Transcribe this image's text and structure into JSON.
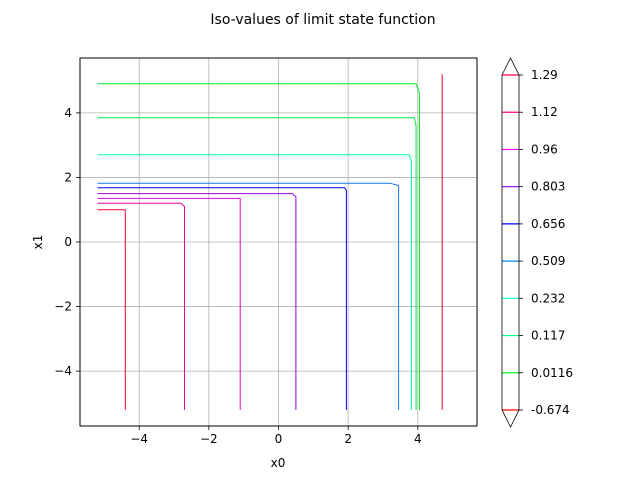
{
  "chart_data": {
    "type": "line",
    "title": "Iso-values of limit state function",
    "xlabel": "x0",
    "ylabel": "x1",
    "xlim": [
      -5.7,
      5.7
    ],
    "ylim": [
      -5.7,
      5.7
    ],
    "xticks": [
      -4,
      -2,
      0,
      2,
      4
    ],
    "xtick_labels": [
      "−4",
      "−2",
      "0",
      "2",
      "4"
    ],
    "yticks": [
      -4,
      -2,
      0,
      2,
      4
    ],
    "ytick_labels": [
      "−4",
      "−2",
      "0",
      "2",
      "4"
    ],
    "grid": true,
    "colorbar": {
      "labels": [
        "-0.674",
        "0.0116",
        "0.117",
        "0.232",
        "0.509",
        "0.656",
        "0.803",
        "0.96",
        "1.12",
        "1.29"
      ],
      "colors": [
        "#ff0000",
        "#00ff22",
        "#00ff88",
        "#00ffcc",
        "#0088ff",
        "#0000ff",
        "#8800ff",
        "#ff00ff",
        "#ff0088",
        "#ff0044"
      ],
      "extend": "both"
    },
    "series": [
      {
        "color": "#ff0022",
        "points": [
          [
            4.7,
            5.2
          ],
          [
            4.7,
            -5.2
          ]
        ]
      },
      {
        "color": "#00ee22",
        "points": [
          [
            -5.2,
            4.9
          ],
          [
            3.95,
            4.9
          ],
          [
            4.05,
            4.6
          ],
          [
            4.05,
            -5.2
          ]
        ]
      },
      {
        "color": "#00ee44",
        "points": [
          [
            -5.2,
            3.85
          ],
          [
            3.9,
            3.85
          ],
          [
            3.95,
            3.6
          ],
          [
            3.95,
            -5.2
          ]
        ]
      },
      {
        "color": "#00ff99",
        "points": [
          [
            -5.2,
            2.7
          ],
          [
            3.75,
            2.7
          ],
          [
            3.82,
            2.5
          ],
          [
            3.82,
            -5.2
          ]
        ]
      },
      {
        "color": "#1177ff",
        "points": [
          [
            -5.2,
            1.82
          ],
          [
            3.2,
            1.82
          ],
          [
            3.45,
            1.75
          ],
          [
            3.45,
            -5.2
          ]
        ]
      },
      {
        "color": "#0000ee",
        "points": [
          [
            -5.2,
            1.68
          ],
          [
            1.9,
            1.68
          ],
          [
            1.95,
            1.6
          ],
          [
            1.95,
            -5.2
          ]
        ]
      },
      {
        "color": "#9900ee",
        "points": [
          [
            -5.2,
            1.5
          ],
          [
            0.4,
            1.5
          ],
          [
            0.5,
            1.4
          ],
          [
            0.5,
            -5.2
          ]
        ]
      },
      {
        "color": "#ee00dd",
        "points": [
          [
            -5.2,
            1.35
          ],
          [
            -1.1,
            1.35
          ],
          [
            -1.1,
            -5.2
          ]
        ]
      },
      {
        "color": "#ee0099",
        "points": [
          [
            -5.2,
            1.2
          ],
          [
            -2.8,
            1.2
          ],
          [
            -2.7,
            1.1
          ],
          [
            -2.7,
            -5.2
          ]
        ]
      },
      {
        "color": "#ff0033",
        "points": [
          [
            -5.2,
            1.0
          ],
          [
            -4.4,
            1.0
          ],
          [
            -4.4,
            -5.2
          ]
        ]
      }
    ]
  }
}
